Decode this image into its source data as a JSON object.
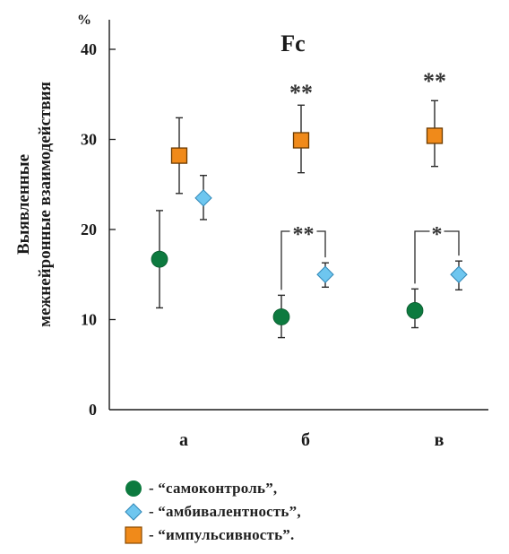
{
  "chart_data": {
    "type": "scatter",
    "title": "Fc",
    "ylabel": "Выявленные межнейронные взаимодействия",
    "yunit": "%",
    "xlabel": "",
    "categories": [
      "а",
      "б",
      "в"
    ],
    "ylim": [
      0,
      45
    ],
    "yticks": [
      0,
      10,
      20,
      30,
      40
    ],
    "grid": false,
    "legend_position": "bottom",
    "series": [
      {
        "name": "- “самоконтроль”,",
        "marker": "circle",
        "color": "#0d7a3f",
        "values": [
          16.7,
          10.3,
          11.0
        ],
        "err_low": [
          11.3,
          8.0,
          9.1
        ],
        "err_high": [
          22.1,
          12.7,
          13.4
        ]
      },
      {
        "name": "- “амбивалентность”,",
        "marker": "diamond",
        "color": "#6ec6ef",
        "values": [
          23.5,
          15.0,
          15.0
        ],
        "err_low": [
          21.1,
          13.6,
          13.3
        ],
        "err_high": [
          26.0,
          16.3,
          16.5
        ]
      },
      {
        "name": "- “импульсивность”.",
        "marker": "square",
        "color": "#f08a1a",
        "values": [
          28.2,
          29.9,
          30.4
        ],
        "err_low": [
          24.0,
          26.3,
          27.0
        ],
        "err_high": [
          32.4,
          33.8,
          34.3
        ]
      }
    ],
    "annotations": [
      {
        "text": "**",
        "category_index": 1,
        "y": 35.5,
        "kind": "label"
      },
      {
        "text": "**",
        "category_index": 2,
        "y": 36.8,
        "kind": "label"
      },
      {
        "text": "**",
        "category_index": 1,
        "kind": "bracket",
        "from_series": 0,
        "to_series": 1,
        "y": 19.8
      },
      {
        "text": "*",
        "category_index": 2,
        "kind": "bracket",
        "from_series": 0,
        "to_series": 1,
        "y": 19.8
      }
    ]
  }
}
